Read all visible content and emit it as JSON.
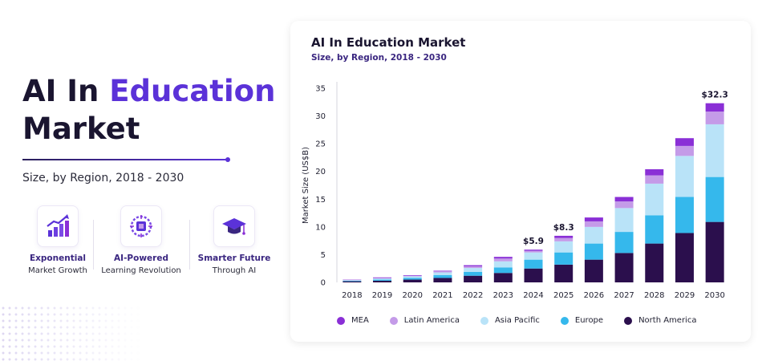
{
  "hero": {
    "title_part1": "AI In ",
    "title_accent": "Education",
    "title_line2": "Market",
    "subtitle": "Size, by Region, 2018 - 2030"
  },
  "features": [
    {
      "icon": "growth-chart-icon",
      "title": "Exponential",
      "subtitle": "Market Growth"
    },
    {
      "icon": "ai-chip-brain-icon",
      "title": "AI-Powered",
      "subtitle": "Learning Revolution"
    },
    {
      "icon": "graduation-cap-icon",
      "title": "Smarter Future",
      "subtitle": "Through AI"
    }
  ],
  "colors": {
    "accent": "#5b32d8",
    "dark": "#1a1530",
    "MEA": "#8a2fd6",
    "Latin America": "#c49be8",
    "Asia Pacific": "#b9e3f8",
    "Europe": "#35b8ec",
    "North America": "#2b0f4d"
  },
  "chart_data": {
    "type": "bar",
    "stacked": true,
    "title": "AI In Education Market",
    "subtitle": "Size, by Region, 2018 - 2030",
    "xlabel": "",
    "ylabel": "Market Size (US$B)",
    "ylim": [
      0,
      35
    ],
    "yticks": [
      0,
      5,
      10,
      15,
      20,
      25,
      30,
      35
    ],
    "grid": false,
    "legend_position": "bottom",
    "categories": [
      "2018",
      "2019",
      "2020",
      "2021",
      "2022",
      "2023",
      "2024",
      "2025",
      "2026",
      "2027",
      "2028",
      "2029",
      "2030"
    ],
    "series": [
      {
        "name": "North America",
        "values": [
          0.2,
          0.3,
          0.5,
          0.8,
          1.2,
          1.7,
          2.5,
          3.2,
          4.1,
          5.3,
          7.0,
          8.9,
          10.9
        ]
      },
      {
        "name": "Europe",
        "values": [
          0.1,
          0.2,
          0.3,
          0.5,
          0.7,
          1.0,
          1.6,
          2.2,
          2.9,
          3.8,
          5.1,
          6.5,
          8.1
        ]
      },
      {
        "name": "Asia Pacific",
        "values": [
          0.1,
          0.2,
          0.3,
          0.5,
          0.7,
          1.1,
          1.3,
          2.0,
          3.0,
          4.3,
          5.7,
          7.4,
          9.5
        ]
      },
      {
        "name": "Latin America",
        "values": [
          0.05,
          0.1,
          0.1,
          0.2,
          0.3,
          0.5,
          0.3,
          0.6,
          1.0,
          1.2,
          1.5,
          1.8,
          2.3
        ]
      },
      {
        "name": "MEA",
        "values": [
          0.05,
          0.1,
          0.1,
          0.1,
          0.2,
          0.3,
          0.2,
          0.4,
          0.7,
          0.8,
          1.1,
          1.4,
          1.5
        ]
      }
    ],
    "data_labels": [
      {
        "category": "2024",
        "text": "$5.9"
      },
      {
        "category": "2025",
        "text": "$8.3"
      },
      {
        "category": "2030",
        "text": "$32.3"
      }
    ],
    "legend": [
      "MEA",
      "Latin America",
      "Asia Pacific",
      "Europe",
      "North America"
    ]
  }
}
